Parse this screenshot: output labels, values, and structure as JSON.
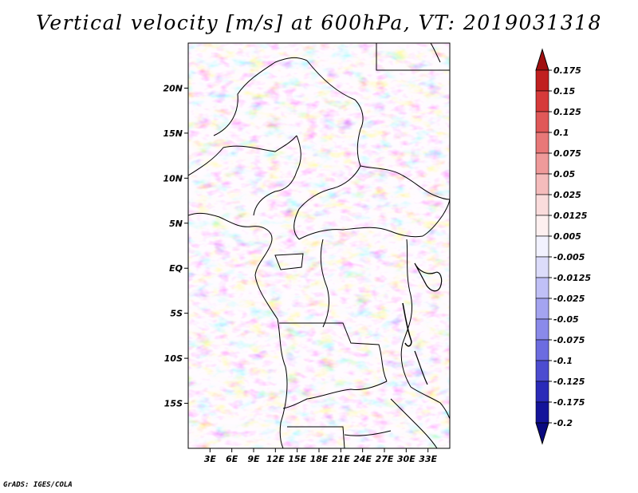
{
  "title": "Vertical velocity [m/s] at 600hPa, VT: 2019031318",
  "credit": "GrADS: IGES/COLA",
  "map": {
    "lon_range": [
      0,
      36
    ],
    "lat_range": [
      -20,
      25
    ],
    "lon_ticks": [
      "3E",
      "6E",
      "9E",
      "12E",
      "15E",
      "18E",
      "21E",
      "24E",
      "27E",
      "30E",
      "33E"
    ],
    "lat_ticks": [
      "20N",
      "15N",
      "10N",
      "5N",
      "EQ",
      "5S",
      "10S",
      "15S"
    ]
  },
  "colorbar": {
    "labels": [
      "0.175",
      "0.15",
      "0.125",
      "0.1",
      "0.075",
      "0.05",
      "0.025",
      "0.0125",
      "0.005",
      "-0.005",
      "-0.0125",
      "-0.025",
      "-0.05",
      "-0.075",
      "-0.1",
      "-0.125",
      "-0.175",
      "-0.2"
    ],
    "colors": [
      "#a01010",
      "#c02020",
      "#d63a3a",
      "#e05858",
      "#e87878",
      "#ef9a9a",
      "#f5bcbc",
      "#fadcdc",
      "#fdf0f0",
      "#f2f2fe",
      "#dcdcfa",
      "#c0c0f6",
      "#a4a4f0",
      "#8a8aea",
      "#6c6ce0",
      "#4c4cd0",
      "#2a2ab8",
      "#14149a",
      "#0a0a80"
    ]
  }
}
